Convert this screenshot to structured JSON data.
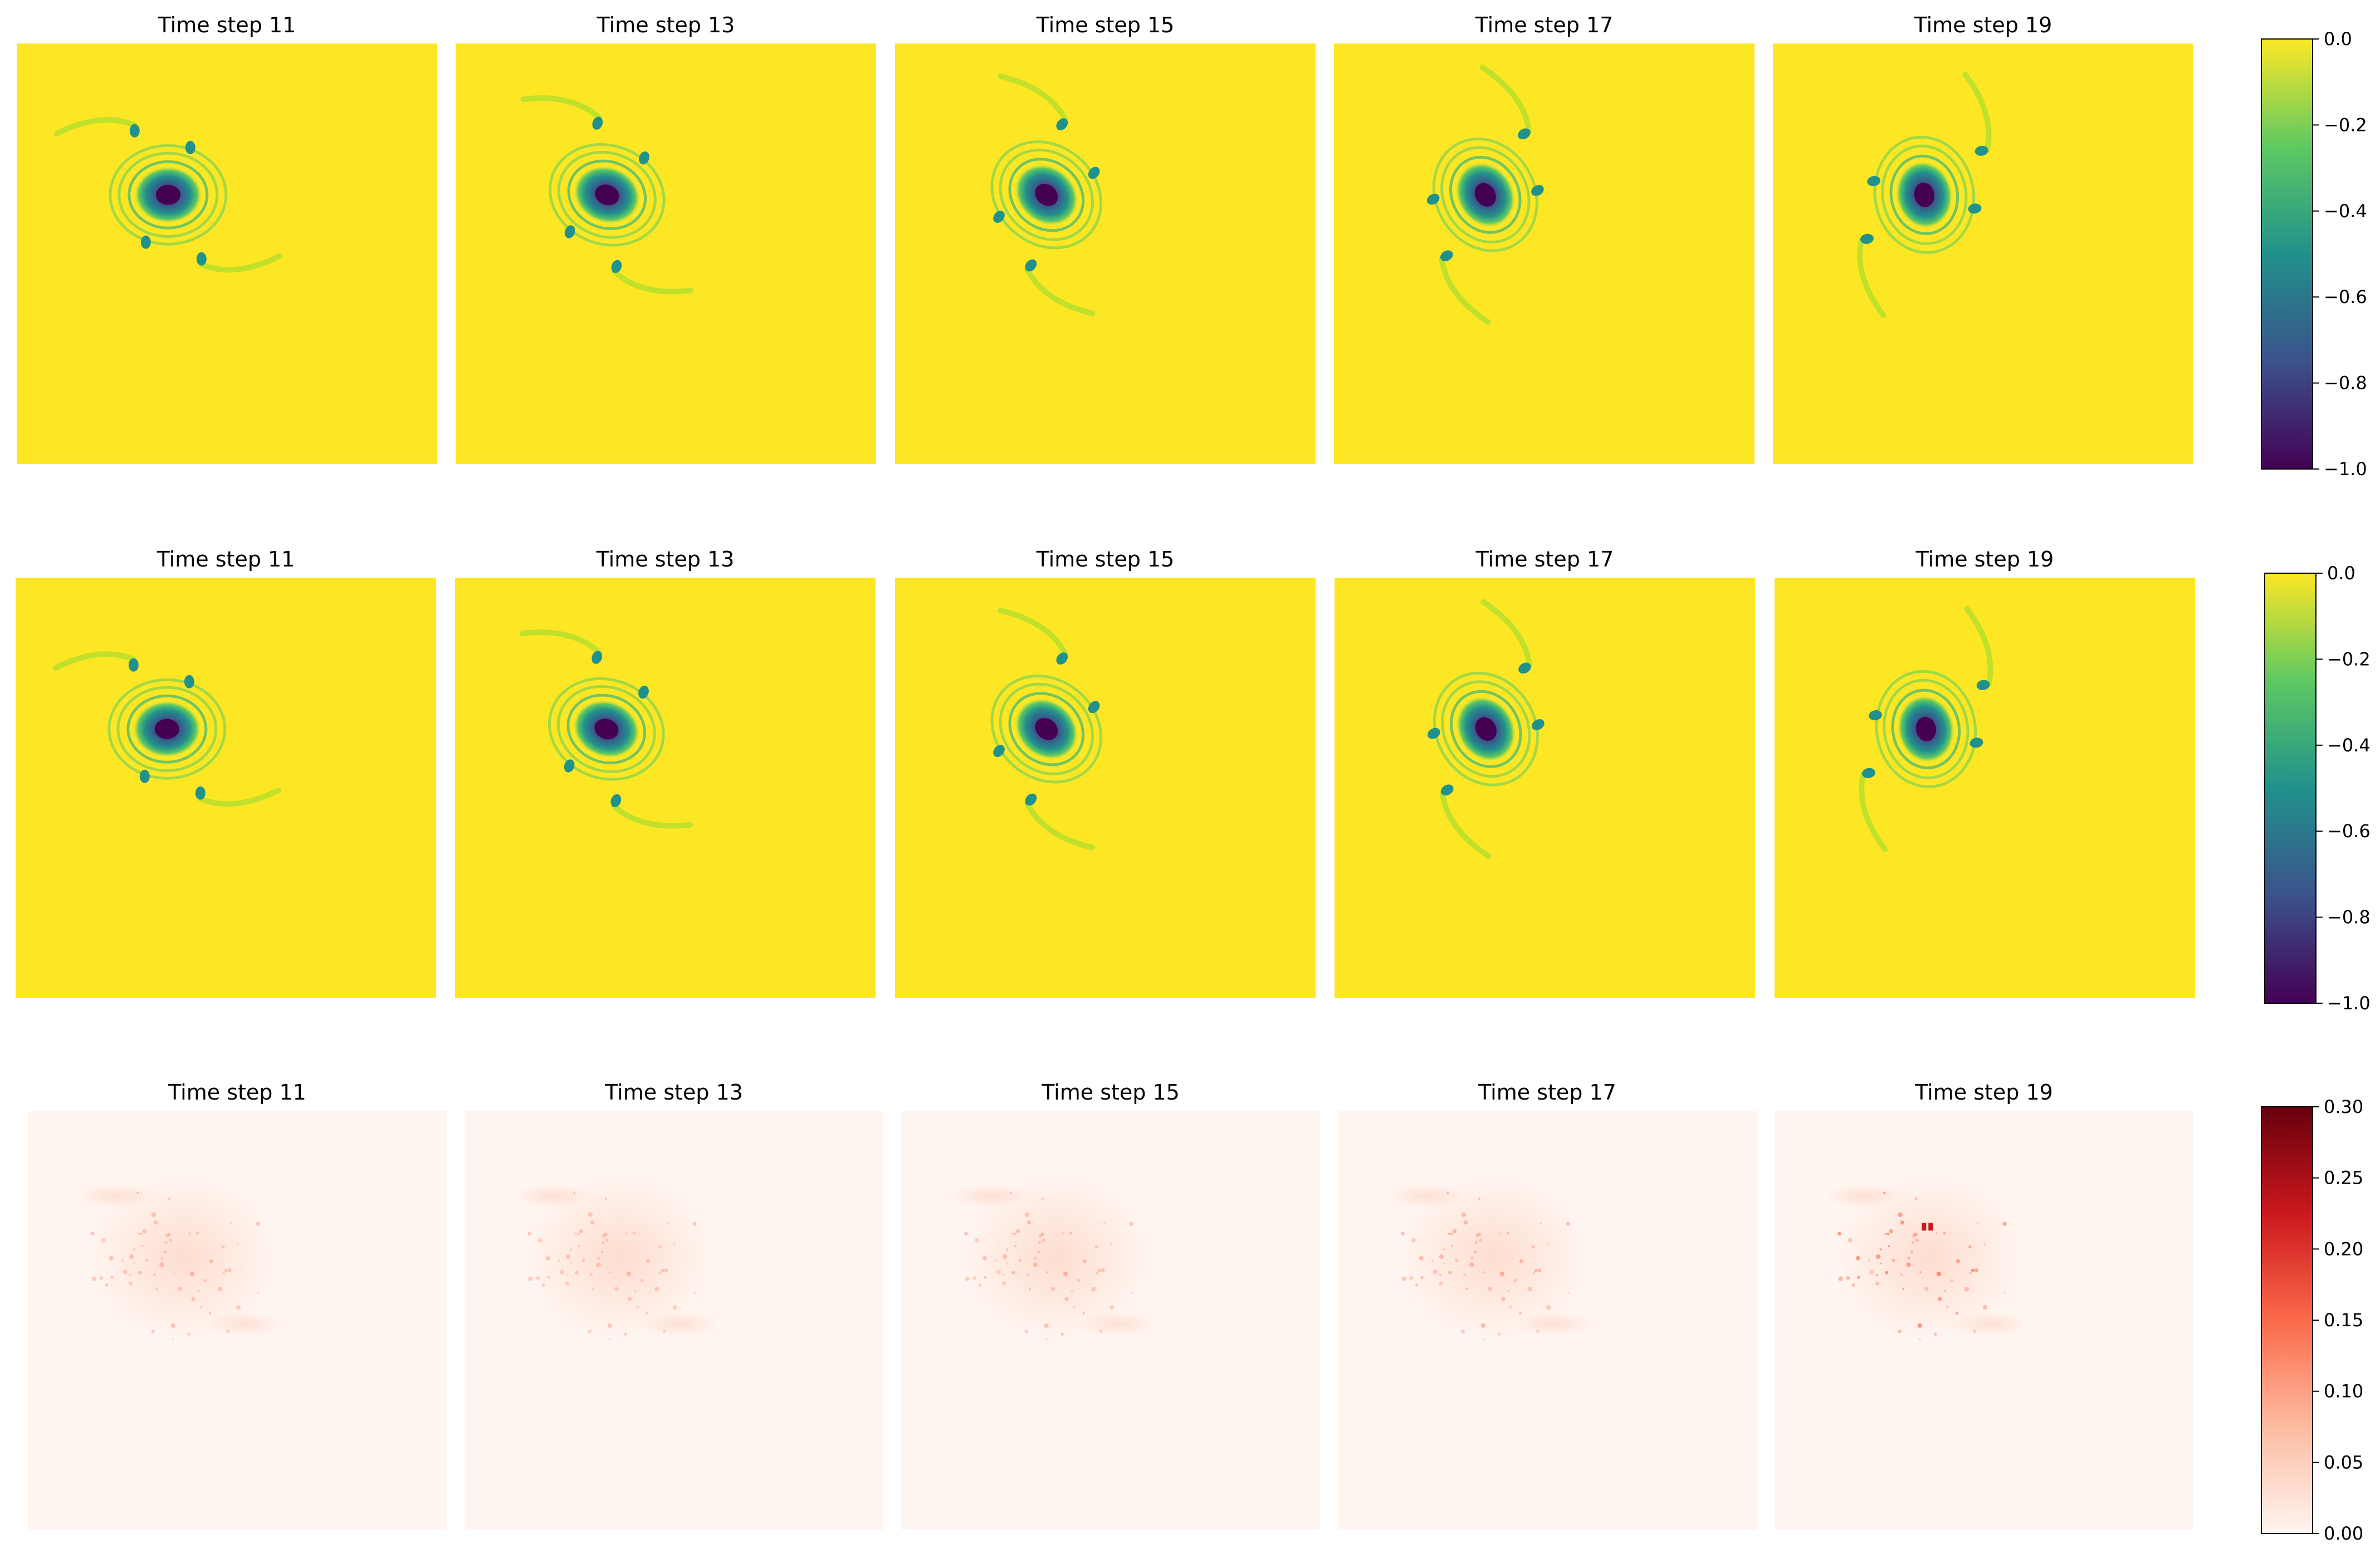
{
  "chart_data": [
    {
      "type": "heatmap",
      "row": "predicted",
      "panels": [
        {
          "title": "Time step 11",
          "time_step": 11,
          "rotation_deg": 0
        },
        {
          "title": "Time step 13",
          "time_step": 13,
          "rotation_deg": 20
        },
        {
          "title": "Time step 15",
          "time_step": 15,
          "rotation_deg": 40
        },
        {
          "title": "Time step 17",
          "time_step": 17,
          "rotation_deg": 60
        },
        {
          "title": "Time step 19",
          "time_step": 19,
          "rotation_deg": 80
        }
      ],
      "colormap": "viridis",
      "colorbar": {
        "min": -1.0,
        "max": 0.0,
        "ticks": [
          0.0,
          -0.2,
          -0.4,
          -0.6,
          -0.8,
          -1.0
        ],
        "tick_labels": [
          "0.0",
          "−0.2",
          "−0.4",
          "−0.6",
          "−0.8",
          "−1.0"
        ]
      },
      "background_value": 0.0,
      "core_value": -1.0
    },
    {
      "type": "heatmap",
      "row": "ground_truth",
      "panels": [
        {
          "title": "Time step 11",
          "time_step": 11,
          "rotation_deg": 0
        },
        {
          "title": "Time step 13",
          "time_step": 13,
          "rotation_deg": 20
        },
        {
          "title": "Time step 15",
          "time_step": 15,
          "rotation_deg": 40
        },
        {
          "title": "Time step 17",
          "time_step": 17,
          "rotation_deg": 60
        },
        {
          "title": "Time step 19",
          "time_step": 19,
          "rotation_deg": 80
        }
      ],
      "colormap": "viridis",
      "colorbar": {
        "min": -1.0,
        "max": 0.0,
        "ticks": [
          0.0,
          -0.2,
          -0.4,
          -0.6,
          -0.8,
          -1.0
        ],
        "tick_labels": [
          "0.0",
          "−0.2",
          "−0.4",
          "−0.6",
          "−0.8",
          "−1.0"
        ]
      },
      "background_value": 0.0,
      "core_value": -1.0
    },
    {
      "type": "heatmap",
      "row": "error",
      "panels": [
        {
          "title": "Time step 11",
          "time_step": 11,
          "max_error": 0.05
        },
        {
          "title": "Time step 13",
          "time_step": 13,
          "max_error": 0.04
        },
        {
          "title": "Time step 15",
          "time_step": 15,
          "max_error": 0.06
        },
        {
          "title": "Time step 17",
          "time_step": 17,
          "max_error": 0.09
        },
        {
          "title": "Time step 19",
          "time_step": 19,
          "max_error": 0.22
        }
      ],
      "colormap": "Reds",
      "colorbar": {
        "min": 0.0,
        "max": 0.3,
        "ticks": [
          0.3,
          0.25,
          0.2,
          0.15,
          0.1,
          0.05,
          0.0
        ],
        "tick_labels": [
          "0.30",
          "0.25",
          "0.20",
          "0.15",
          "0.10",
          "0.05",
          "0.00"
        ]
      },
      "background_value": 0.01
    }
  ],
  "colors": {
    "viridis": [
      "#440154",
      "#3b528b",
      "#21918c",
      "#5ec962",
      "#fde725"
    ],
    "reds": [
      "#fff5f0",
      "#fcbba1",
      "#fb6a4a",
      "#cb181d",
      "#67000d"
    ]
  }
}
